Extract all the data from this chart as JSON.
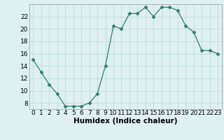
{
  "x": [
    0,
    1,
    2,
    3,
    4,
    5,
    6,
    7,
    8,
    9,
    10,
    11,
    12,
    13,
    14,
    15,
    16,
    17,
    18,
    19,
    20,
    21,
    22,
    23
  ],
  "y": [
    15.0,
    13.0,
    11.0,
    9.5,
    7.5,
    7.5,
    7.5,
    8.0,
    9.5,
    14.0,
    20.5,
    20.0,
    22.5,
    22.5,
    23.5,
    22.0,
    23.5,
    23.5,
    23.0,
    20.5,
    19.5,
    16.5,
    16.5,
    16.0
  ],
  "xlabel": "Humidex (Indice chaleur)",
  "ylim": [
    7,
    24
  ],
  "xlim": [
    -0.5,
    23.5
  ],
  "yticks": [
    8,
    10,
    12,
    14,
    16,
    18,
    20,
    22
  ],
  "xticks": [
    0,
    1,
    2,
    3,
    4,
    5,
    6,
    7,
    8,
    9,
    10,
    11,
    12,
    13,
    14,
    15,
    16,
    17,
    18,
    19,
    20,
    21,
    22,
    23
  ],
  "line_color": "#2e7d6e",
  "marker": "D",
  "marker_size": 2.5,
  "bg_color": "#dff0f0",
  "grid_color": "#b8d8d8",
  "xlabel_fontsize": 7.5,
  "tick_fontsize": 6.5,
  "fig_width": 3.2,
  "fig_height": 2.0,
  "dpi": 100
}
